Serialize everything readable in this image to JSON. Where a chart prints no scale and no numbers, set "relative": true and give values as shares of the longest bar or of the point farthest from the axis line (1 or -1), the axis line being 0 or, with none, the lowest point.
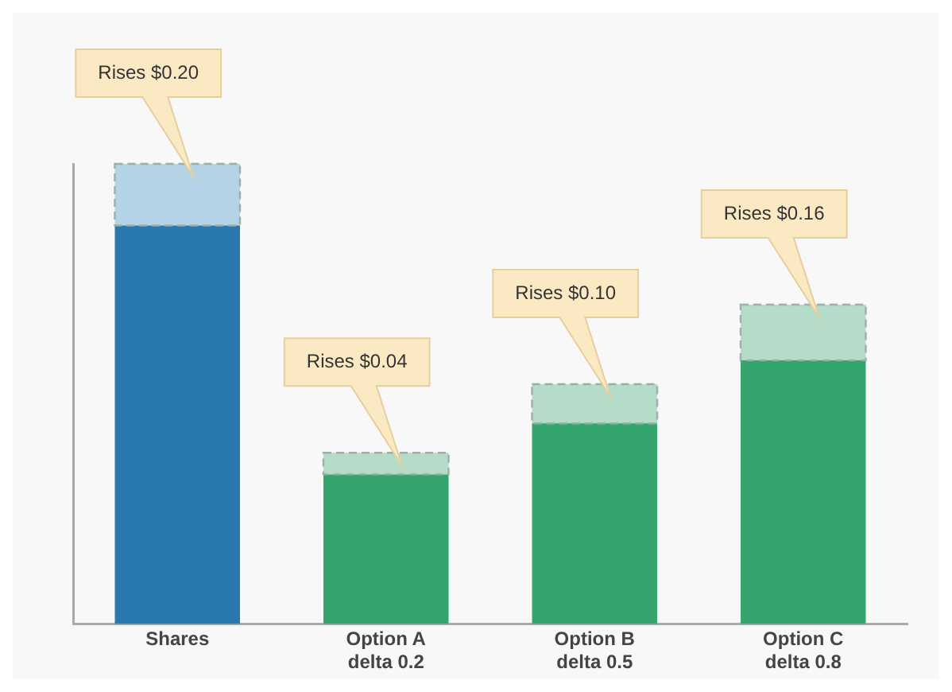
{
  "chart_data": {
    "type": "bar",
    "stacked": true,
    "relative": true,
    "categories": [
      "Shares",
      "Option A\ndelta 0.2",
      "Option B\ndelta 0.5",
      "Option C\ndelta 0.8"
    ],
    "series": [
      {
        "colors": [
          "#2a78b0",
          "#35a56e",
          "#35a56e",
          "#35a56e"
        ],
        "values": [
          0.866,
          0.325,
          0.436,
          0.573
        ]
      },
      {
        "colors": [
          "#b5d3e6",
          "#b4dcc8",
          "#b4dcc8",
          "#b4dcc8"
        ],
        "line_style": "dashed",
        "values": [
          0.134,
          0.047,
          0.085,
          0.121
        ]
      }
    ],
    "annotations": [
      "Rises $0.20",
      "Rises $0.04",
      "Rises $0.10",
      "Rises $0.16"
    ],
    "grid": false,
    "legend": false
  }
}
